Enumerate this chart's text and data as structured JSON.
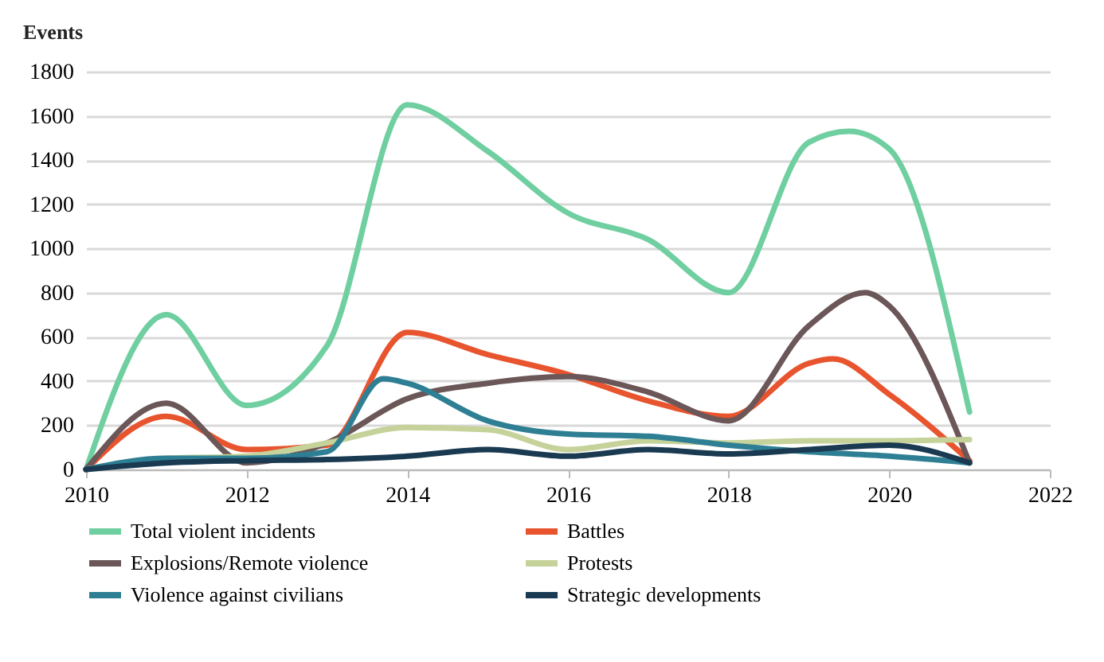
{
  "chart_data": {
    "type": "line",
    "ylabel": "Events",
    "xlim": [
      2010,
      2022
    ],
    "xticks": [
      2010,
      2012,
      2014,
      2016,
      2018,
      2020,
      2022
    ],
    "ylim": [
      0,
      1800
    ],
    "yticks": [
      0,
      200,
      400,
      600,
      800,
      1000,
      1200,
      1400,
      1600,
      1800
    ],
    "grid": "y",
    "legend": "bottom",
    "marker": "none",
    "line_style": "solid",
    "series": [
      {
        "name": "Total violent incidents",
        "color": "#6fcfa0",
        "x": [
          2010,
          2011,
          2012,
          2013,
          2014,
          2015,
          2016,
          2017,
          2018,
          2019,
          2019.5,
          2020,
          2021
        ],
        "values": [
          0,
          700,
          290,
          560,
          1650,
          1440,
          1160,
          1040,
          800,
          1480,
          1530,
          1450,
          260
        ]
      },
      {
        "name": "Battles",
        "color": "#e8542e",
        "x": [
          2010,
          2011,
          2012,
          2013,
          2014,
          2015,
          2016,
          2017,
          2018,
          2019,
          2019.3,
          2020,
          2021
        ],
        "values": [
          0,
          240,
          90,
          110,
          620,
          520,
          430,
          310,
          240,
          480,
          500,
          340,
          40
        ]
      },
      {
        "name": "Explosions/Remote violence",
        "color": "#6b5658",
        "x": [
          2010,
          2011,
          2012,
          2013,
          2014,
          2015,
          2016,
          2017,
          2018,
          2019,
          2019.7,
          2020,
          2021
        ],
        "values": [
          0,
          300,
          30,
          120,
          320,
          390,
          420,
          350,
          220,
          650,
          800,
          740,
          30
        ]
      },
      {
        "name": "Protests",
        "color": "#c5d29a",
        "x": [
          2010,
          2011,
          2012,
          2013,
          2014,
          2015,
          2016,
          2017,
          2018,
          2019,
          2020,
          2021
        ],
        "values": [
          0,
          50,
          60,
          120,
          190,
          180,
          90,
          130,
          120,
          130,
          130,
          135
        ]
      },
      {
        "name": "Violence against civilians",
        "color": "#2e7f94",
        "x": [
          2010,
          2011,
          2012,
          2013,
          2013.7,
          2014,
          2015,
          2016,
          2017,
          2018,
          2019,
          2020,
          2021
        ],
        "values": [
          0,
          50,
          50,
          80,
          410,
          390,
          220,
          160,
          150,
          110,
          80,
          60,
          30
        ]
      },
      {
        "name": "Strategic developments",
        "color": "#1a3a52",
        "x": [
          2010,
          2011,
          2012,
          2013,
          2014,
          2015,
          2016,
          2017,
          2018,
          2019,
          2020,
          2021
        ],
        "values": [
          0,
          30,
          40,
          45,
          60,
          90,
          60,
          90,
          70,
          90,
          110,
          30
        ]
      }
    ]
  }
}
